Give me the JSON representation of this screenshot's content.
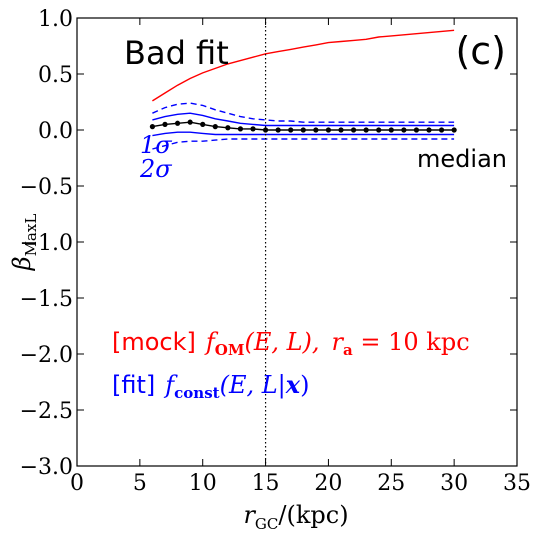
{
  "chart_data": {
    "type": "line",
    "xlabel_main": "r",
    "xlabel_sub": "GC",
    "xlabel_unit": "/(kpc)",
    "ylabel_main": "β",
    "ylabel_sub": "MaxL",
    "xlim": [
      0,
      35
    ],
    "ylim": [
      -3.0,
      1.0
    ],
    "xticks": [
      0,
      5,
      10,
      15,
      20,
      25,
      30,
      35
    ],
    "yticks": [
      1.0,
      0.5,
      0.0,
      -0.5,
      -1.0,
      -1.5,
      -2.0,
      -2.5,
      -3.0
    ],
    "ytick_labels": [
      "1.0",
      "0.5",
      "0.0",
      "−0.5",
      "−1.0",
      "−1.5",
      "−2.0",
      "−2.5",
      "−3.0"
    ],
    "vline_x": 15,
    "x": [
      6,
      7,
      8,
      9,
      10,
      11,
      12,
      13,
      14,
      15,
      16,
      17,
      18,
      19,
      20,
      21,
      22,
      23,
      24,
      25,
      26,
      27,
      28,
      29,
      30
    ],
    "series": [
      {
        "name": "mock",
        "color": "#ff0000",
        "style": "solid",
        "values": [
          0.26,
          0.33,
          0.4,
          0.46,
          0.51,
          0.55,
          0.59,
          0.62,
          0.65,
          0.68,
          0.7,
          0.72,
          0.74,
          0.76,
          0.78,
          0.79,
          0.8,
          0.81,
          0.83,
          0.84,
          0.85,
          0.86,
          0.87,
          0.88,
          0.89
        ]
      },
      {
        "name": "2sigma_upper",
        "color": "#0000ff",
        "style": "dashed",
        "values": [
          0.15,
          0.2,
          0.23,
          0.24,
          0.22,
          0.18,
          0.15,
          0.12,
          0.1,
          0.09,
          0.08,
          0.08,
          0.07,
          0.07,
          0.07,
          0.07,
          0.07,
          0.07,
          0.07,
          0.07,
          0.07,
          0.07,
          0.07,
          0.07,
          0.07
        ]
      },
      {
        "name": "1sigma_upper",
        "color": "#0000ff",
        "style": "solid",
        "values": [
          0.09,
          0.12,
          0.14,
          0.15,
          0.13,
          0.1,
          0.08,
          0.06,
          0.05,
          0.04,
          0.04,
          0.04,
          0.04,
          0.04,
          0.04,
          0.04,
          0.04,
          0.04,
          0.04,
          0.04,
          0.04,
          0.04,
          0.04,
          0.04,
          0.04
        ]
      },
      {
        "name": "median",
        "color": "#000000",
        "style": "solid-dots",
        "values": [
          0.03,
          0.05,
          0.06,
          0.07,
          0.05,
          0.03,
          0.02,
          0.01,
          0.01,
          0.0,
          0.0,
          0.0,
          0.0,
          0.0,
          0.0,
          0.0,
          0.0,
          0.0,
          0.0,
          0.0,
          0.0,
          0.0,
          0.0,
          0.0,
          0.0
        ]
      },
      {
        "name": "1sigma_lower",
        "color": "#0000ff",
        "style": "solid",
        "values": [
          -0.05,
          -0.03,
          -0.02,
          -0.02,
          -0.03,
          -0.04,
          -0.04,
          -0.04,
          -0.04,
          -0.04,
          -0.04,
          -0.04,
          -0.04,
          -0.04,
          -0.04,
          -0.04,
          -0.04,
          -0.04,
          -0.04,
          -0.04,
          -0.04,
          -0.04,
          -0.04,
          -0.04,
          -0.04
        ]
      },
      {
        "name": "2sigma_lower",
        "color": "#0000ff",
        "style": "dashed",
        "values": [
          -0.17,
          -0.14,
          -0.11,
          -0.1,
          -0.1,
          -0.09,
          -0.08,
          -0.08,
          -0.08,
          -0.08,
          -0.08,
          -0.08,
          -0.08,
          -0.08,
          -0.08,
          -0.08,
          -0.08,
          -0.08,
          -0.08,
          -0.08,
          -0.08,
          -0.08,
          -0.08,
          -0.08,
          -0.08
        ]
      }
    ],
    "annotations": {
      "title": "Bad fit",
      "panel": "(c)",
      "one_sigma": "1σ",
      "two_sigma": "2σ",
      "median": "median",
      "mock_tag": "[mock]",
      "mock_f": "f",
      "mock_f_sub": "OM",
      "mock_args": "(E, L),",
      "mock_r": "r",
      "mock_r_sub": "a",
      "mock_r_val": " = 10 kpc",
      "fit_tag": "[fit]",
      "fit_f": "f",
      "fit_f_sub": "const",
      "fit_args_a": "(E, L|",
      "fit_args_x": "x",
      "fit_args_b": ")"
    }
  }
}
